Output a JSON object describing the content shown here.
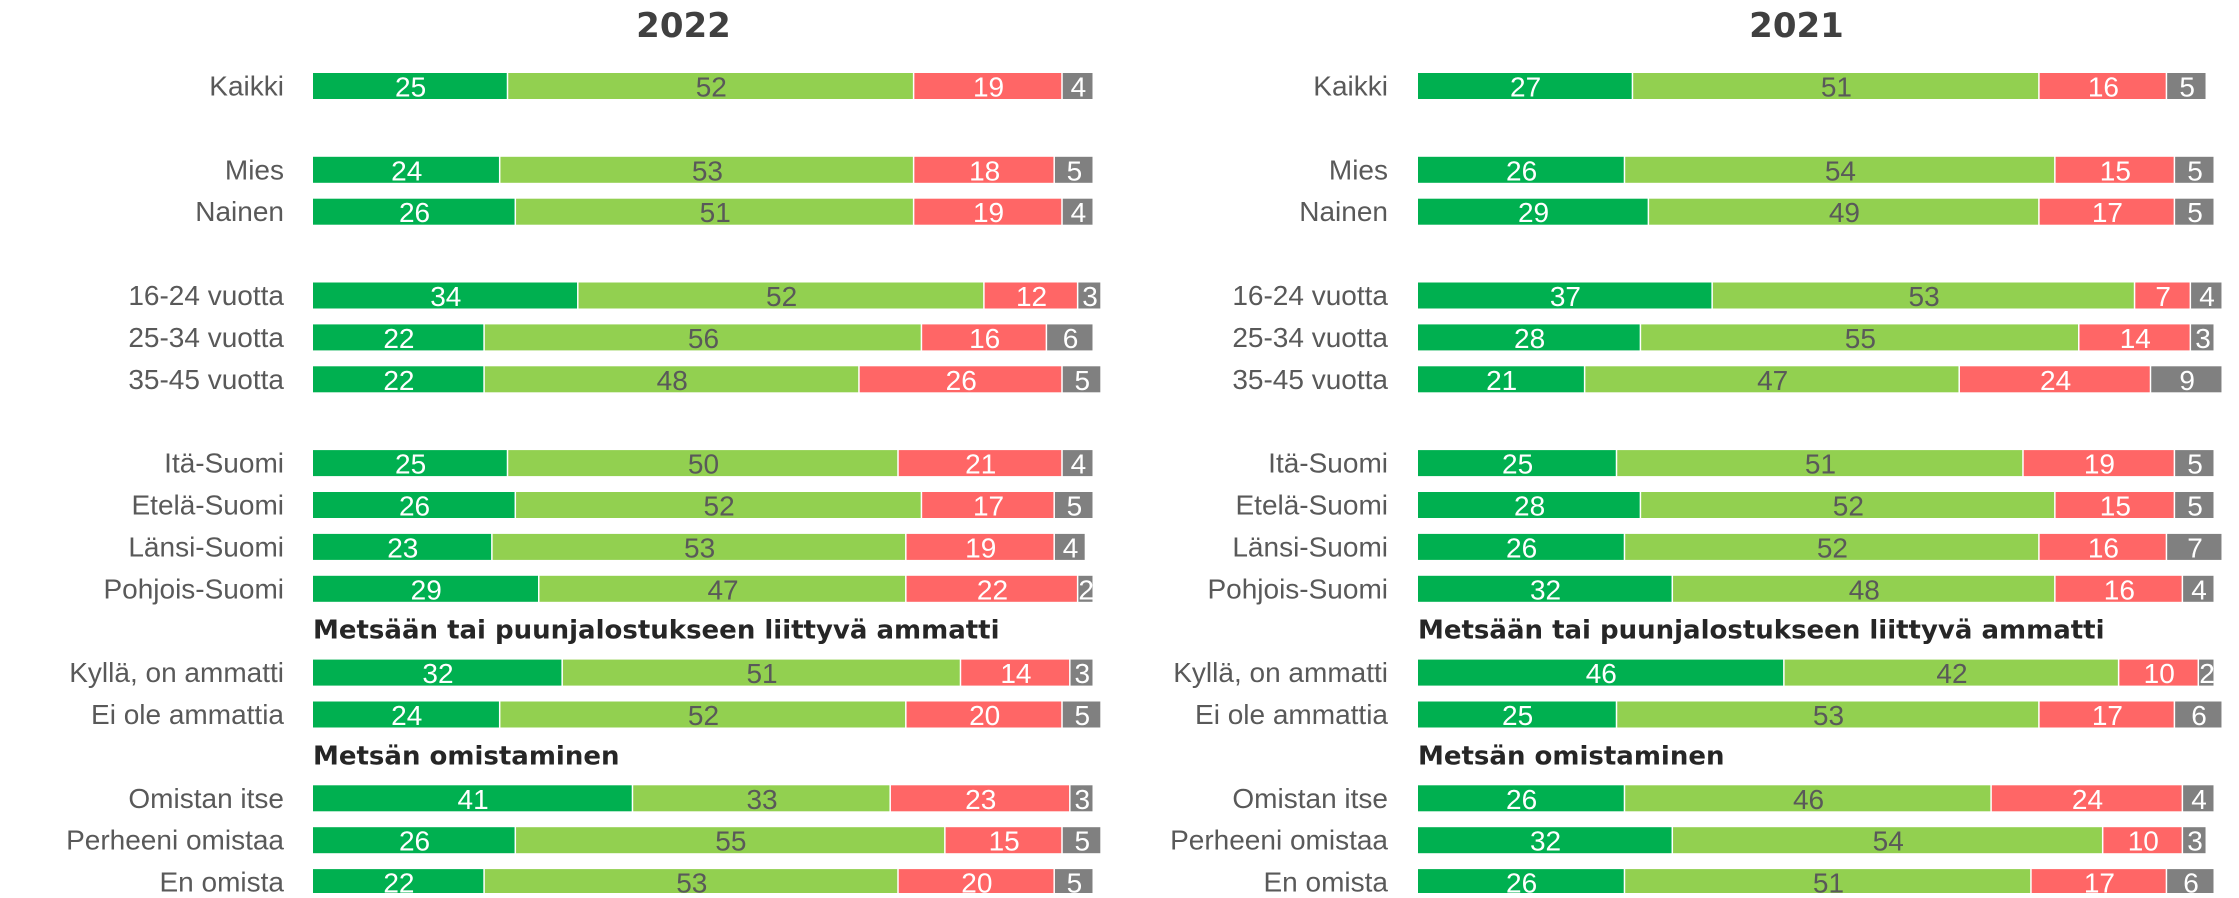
{
  "chart_data": [
    {
      "type": "bar",
      "orientation": "horizontal",
      "stacked": true,
      "title": "2022",
      "categories": [
        "Kaikki",
        "Mies",
        "Nainen",
        "16-24 vuotta",
        "25-34 vuotta",
        "35-45 vuotta",
        "Itä-Suomi",
        "Etelä-Suomi",
        "Länsi-Suomi",
        "Pohjois-Suomi",
        "Kyllä, on ammatti",
        "Ei ole ammattia",
        "Omistan itse",
        "Perheeni omistaa",
        "En omista"
      ],
      "annotations": [
        "Metsään tai puunjalostukseen liittyvä ammatti",
        "Metsän omistaminen"
      ],
      "xlim": [
        0,
        100
      ],
      "series": [
        {
          "color": "#00b050",
          "label_color": "#ffffff",
          "values": [
            25,
            24,
            26,
            34,
            22,
            22,
            25,
            26,
            23,
            29,
            32,
            24,
            41,
            26,
            22
          ]
        },
        {
          "color": "#92d050",
          "label_color": "#595959",
          "values": [
            52,
            53,
            51,
            52,
            56,
            48,
            50,
            52,
            53,
            47,
            51,
            52,
            33,
            55,
            53
          ]
        },
        {
          "color": "#ff6666",
          "label_color": "#ffffff",
          "values": [
            19,
            18,
            19,
            12,
            16,
            26,
            21,
            17,
            19,
            22,
            14,
            20,
            23,
            15,
            20
          ]
        },
        {
          "color": "#808080",
          "label_color": "#ffffff",
          "values": [
            4,
            5,
            4,
            3,
            6,
            5,
            4,
            5,
            4,
            2,
            3,
            5,
            3,
            5,
            5
          ]
        }
      ]
    },
    {
      "type": "bar",
      "orientation": "horizontal",
      "stacked": true,
      "title": "2021",
      "categories": [
        "Kaikki",
        "Mies",
        "Nainen",
        "16-24 vuotta",
        "25-34 vuotta",
        "35-45 vuotta",
        "Itä-Suomi",
        "Etelä-Suomi",
        "Länsi-Suomi",
        "Pohjois-Suomi",
        "Kyllä, on ammatti",
        "Ei ole ammattia",
        "Omistan itse",
        "Perheeni omistaa",
        "En omista"
      ],
      "annotations": [
        "Metsään tai puunjalostukseen liittyvä ammatti",
        "Metsän omistaminen"
      ],
      "xlim": [
        0,
        100
      ],
      "series": [
        {
          "color": "#00b050",
          "label_color": "#ffffff",
          "values": [
            27,
            26,
            29,
            37,
            28,
            21,
            25,
            28,
            26,
            32,
            46,
            25,
            26,
            32,
            26
          ]
        },
        {
          "color": "#92d050",
          "label_color": "#595959",
          "values": [
            51,
            54,
            49,
            53,
            55,
            47,
            51,
            52,
            52,
            48,
            42,
            53,
            46,
            54,
            51
          ]
        },
        {
          "color": "#ff6666",
          "label_color": "#ffffff",
          "values": [
            16,
            15,
            17,
            7,
            14,
            24,
            19,
            15,
            16,
            16,
            10,
            17,
            24,
            10,
            17
          ]
        },
        {
          "color": "#808080",
          "label_color": "#ffffff",
          "values": [
            5,
            5,
            5,
            4,
            3,
            9,
            5,
            5,
            7,
            4,
            2,
            6,
            4,
            3,
            6
          ]
        }
      ]
    }
  ]
}
